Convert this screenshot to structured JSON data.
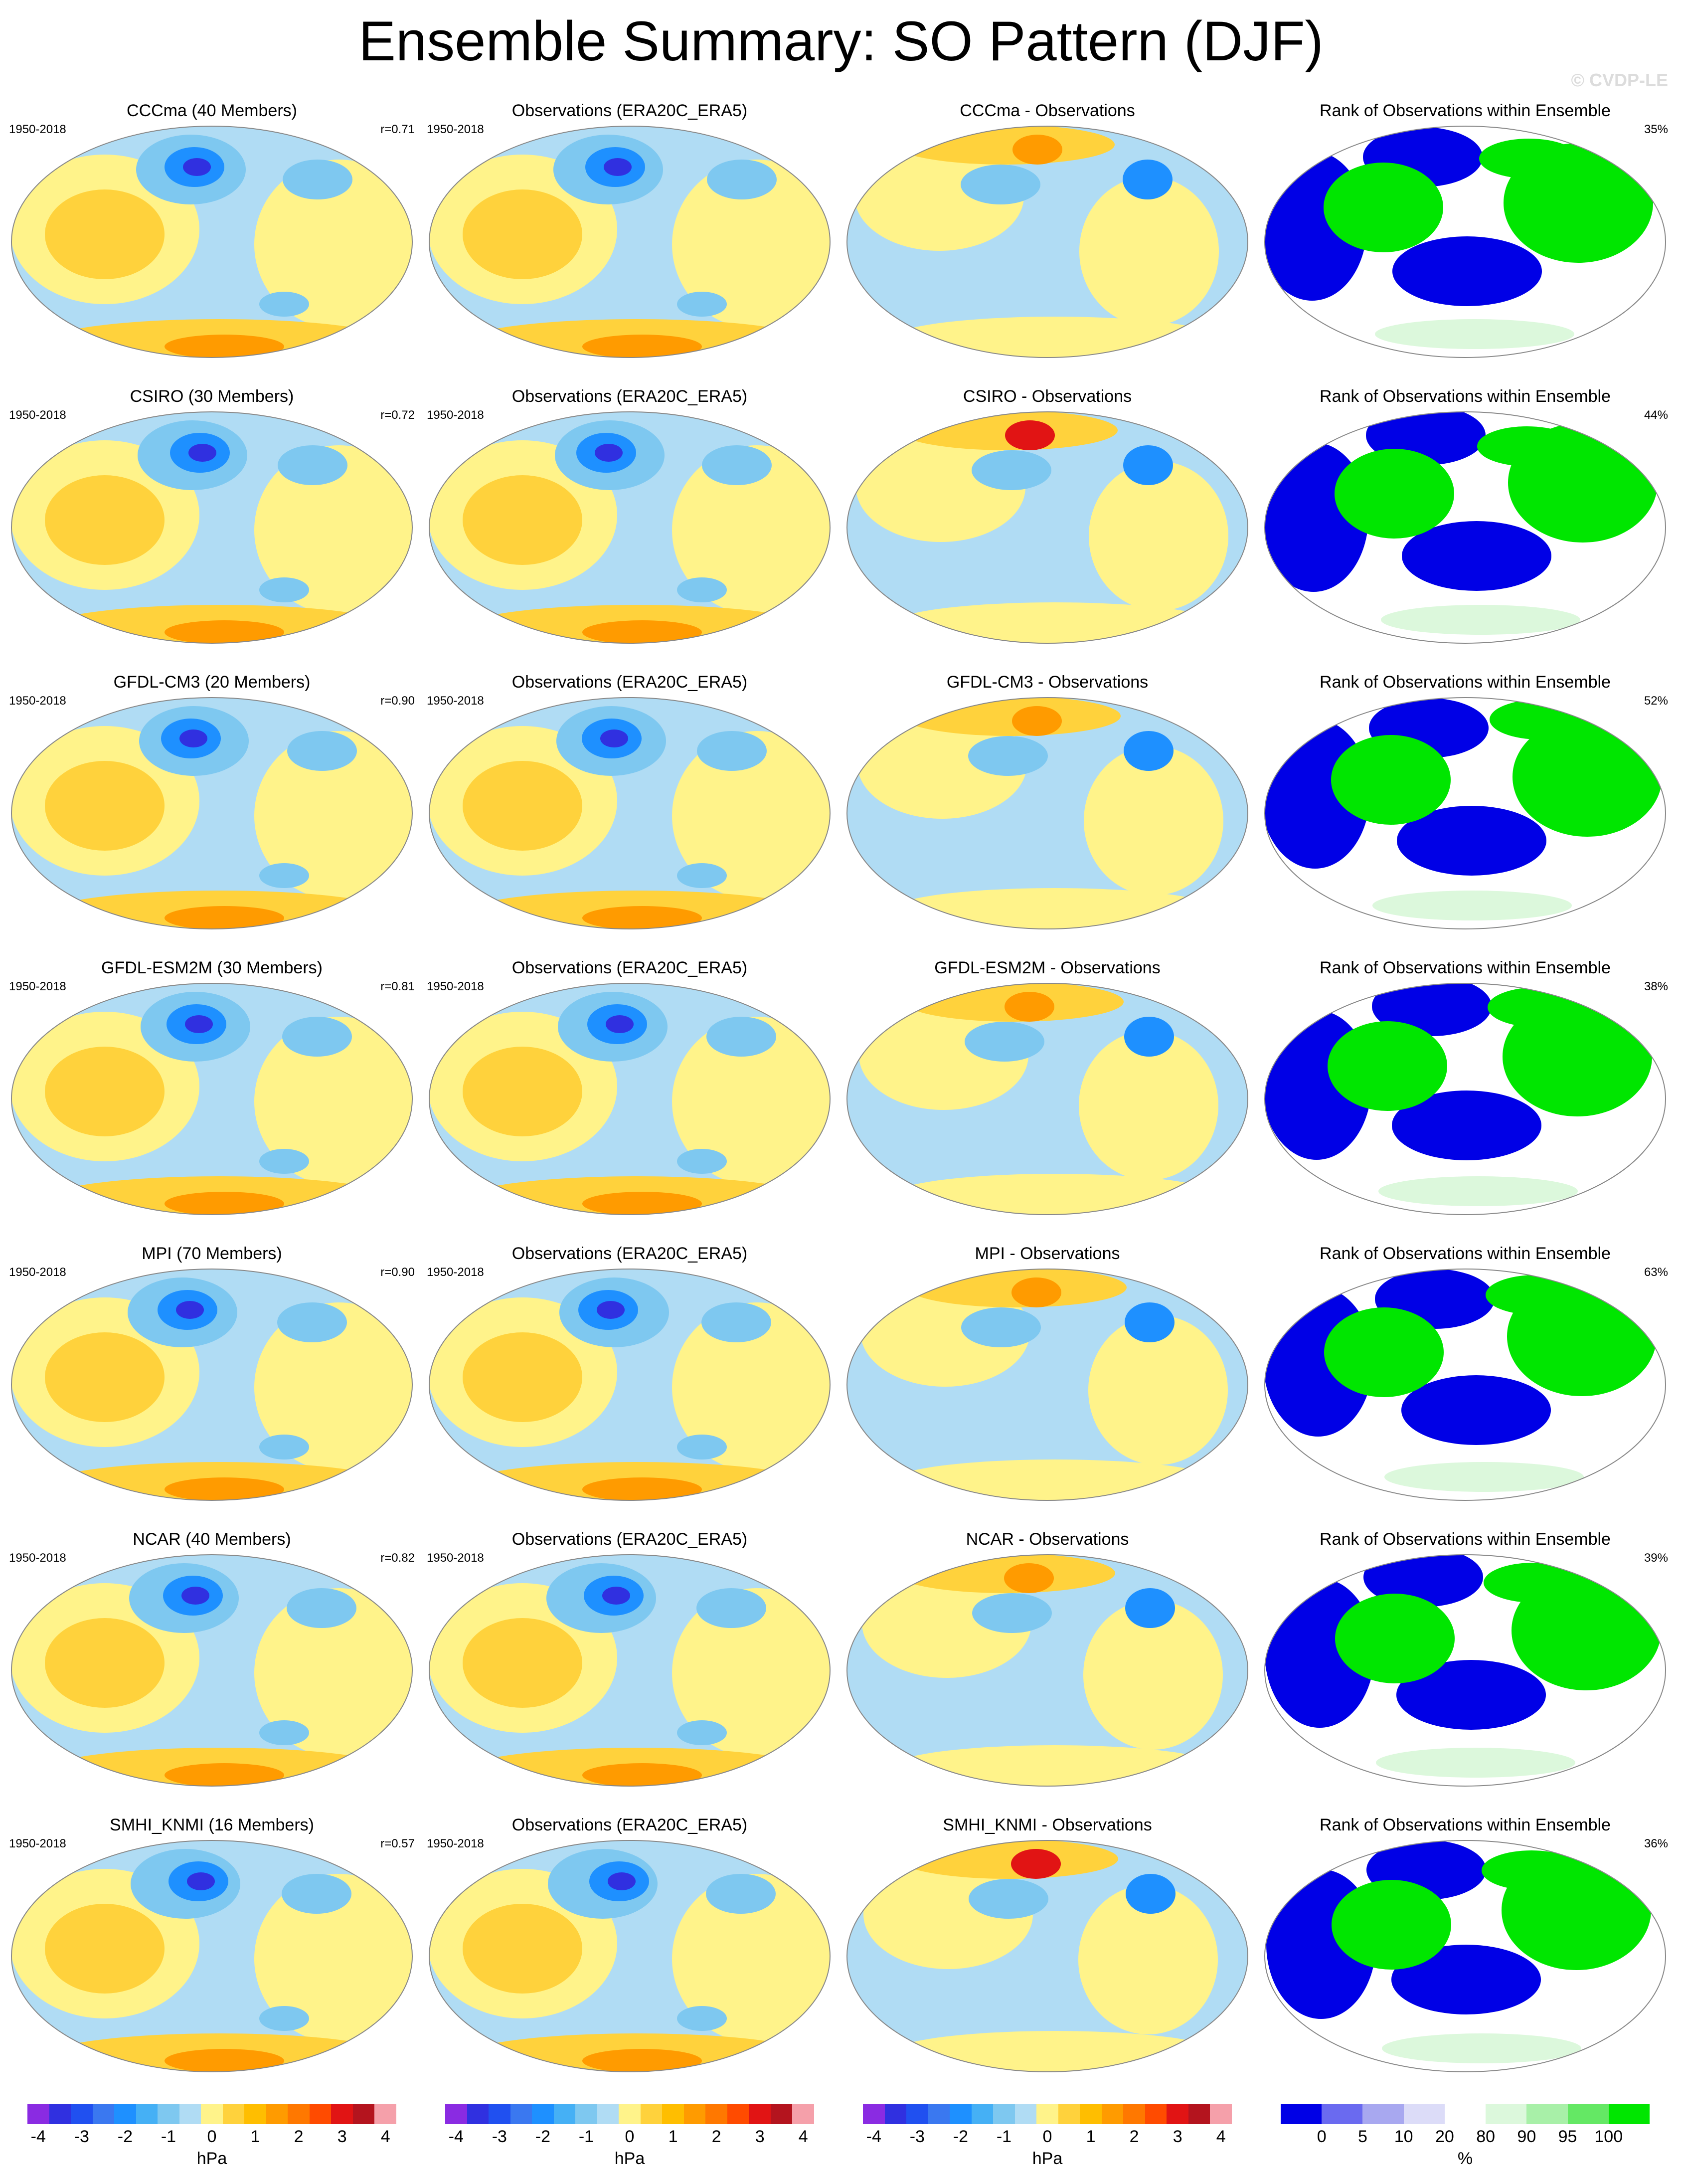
{
  "title": "Ensemble Summary: SO Pattern (DJF)",
  "copyright": "© CVDP-LE",
  "period": "1950-2018",
  "panel_titles": {
    "observations": "Observations (ERA20C_ERA5)",
    "difference_suffix": " - Observations",
    "rank": "Rank of Observations within Ensemble"
  },
  "rows": [
    {
      "model": "CCCma",
      "members_label": "CCCma (40 Members)",
      "corr": "r=0.71",
      "diff_label": "CCCma - Observations",
      "rank_pct": "35%"
    },
    {
      "model": "CSIRO",
      "members_label": "CSIRO (30 Members)",
      "corr": "r=0.72",
      "diff_label": "CSIRO - Observations",
      "rank_pct": "44%"
    },
    {
      "model": "GFDL-CM3",
      "members_label": "GFDL-CM3 (20 Members)",
      "corr": "r=0.90",
      "diff_label": "GFDL-CM3 - Observations",
      "rank_pct": "52%"
    },
    {
      "model": "GFDL-ESM2M",
      "members_label": "GFDL-ESM2M (30 Members)",
      "corr": "r=0.81",
      "diff_label": "GFDL-ESM2M - Observations",
      "rank_pct": "38%"
    },
    {
      "model": "MPI",
      "members_label": "MPI (70 Members)",
      "corr": "r=0.90",
      "diff_label": "MPI - Observations",
      "rank_pct": "63%"
    },
    {
      "model": "NCAR",
      "members_label": "NCAR (40 Members)",
      "corr": "r=0.82",
      "diff_label": "NCAR - Observations",
      "rank_pct": "39%"
    },
    {
      "model": "SMHI_KNMI",
      "members_label": "SMHI_KNMI (16 Members)",
      "corr": "r=0.57",
      "diff_label": "SMHI_KNMI - Observations",
      "rank_pct": "36%"
    }
  ],
  "colorbars": {
    "hpa": {
      "unit": "hPa",
      "ticks": [
        "-4",
        "-3",
        "-2",
        "-1",
        "0",
        "1",
        "2",
        "3",
        "4"
      ],
      "colors": [
        "#8a2be2",
        "#3030e0",
        "#2050f0",
        "#3a78f0",
        "#1e90ff",
        "#45b0f5",
        "#7ec8f0",
        "#b0dcf4",
        "#fff38a",
        "#ffd23c",
        "#ffbe00",
        "#ff9b00",
        "#ff7800",
        "#ff4b00",
        "#e11414",
        "#b4141e",
        "#f5a0aa"
      ]
    },
    "rank": {
      "unit": "%",
      "ticks": [
        "0",
        "5",
        "10",
        "20",
        "80",
        "90",
        "95",
        "100"
      ],
      "colors": [
        "#0000e6",
        "#6a6af0",
        "#a8a8f0",
        "#dcdcf8",
        "#ffffff",
        "#dcf8dc",
        "#a8f0a8",
        "#64e864",
        "#00e600"
      ]
    }
  },
  "map_palette": {
    "ocean_neg_light": "#b0dcf4",
    "ocean_neg_mid": "#7ec8f0",
    "neg_strong": "#1e90ff",
    "neg_core": "#3030e0",
    "pos_light": "#fff38a",
    "pos_mid": "#ffd23c",
    "pos_strong": "#ff9b00",
    "pos_core": "#e11414",
    "rank_low": "#0000e6",
    "rank_high": "#00e600"
  }
}
